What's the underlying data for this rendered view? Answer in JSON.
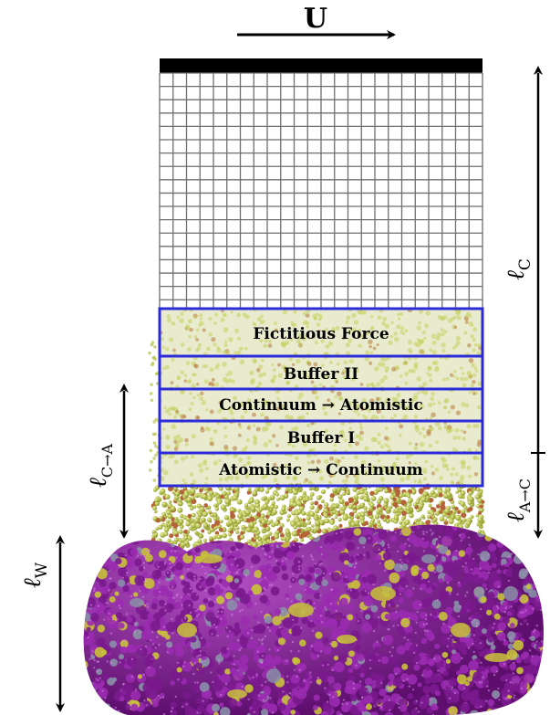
{
  "velocity": {
    "label": "U"
  },
  "regions": [
    {
      "label": "Fictitious Force"
    },
    {
      "label": "Buffer II"
    },
    {
      "label": "Continuum → Atomistic"
    },
    {
      "label": "Buffer I"
    },
    {
      "label": "Atomistic → Continuum"
    }
  ],
  "dimensions": {
    "continuum": {
      "symbol": "ℓ",
      "sub": "C"
    },
    "atomistic_to_continuum": {
      "symbol": "ℓ",
      "sub": "A→C"
    },
    "continuum_to_atomistic": {
      "symbol": "ℓ",
      "sub": "C→A"
    },
    "wall": {
      "symbol": "ℓ",
      "sub": "W"
    }
  },
  "colors": {
    "region_border": "#2b2bd9",
    "grid": "#6e6e6e",
    "fluid": "#c8cf6a",
    "protein": "#8a1f9a",
    "protein_highlight": "#c9c23a",
    "protein_gray": "#8a8fa8"
  }
}
